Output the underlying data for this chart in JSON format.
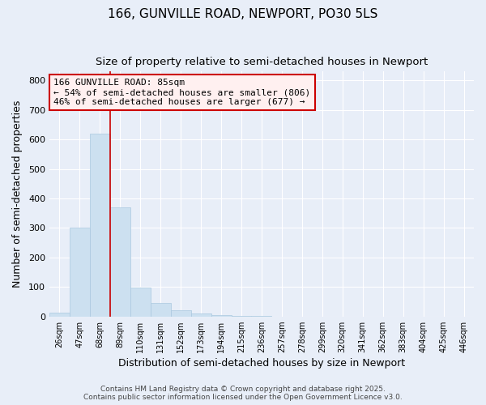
{
  "title1": "166, GUNVILLE ROAD, NEWPORT, PO30 5LS",
  "title2": "Size of property relative to semi-detached houses in Newport",
  "xlabel": "Distribution of semi-detached houses by size in Newport",
  "ylabel": "Number of semi-detached properties",
  "categories": [
    "26sqm",
    "47sqm",
    "68sqm",
    "89sqm",
    "110sqm",
    "131sqm",
    "152sqm",
    "173sqm",
    "194sqm",
    "215sqm",
    "236sqm",
    "257sqm",
    "278sqm",
    "299sqm",
    "320sqm",
    "341sqm",
    "362sqm",
    "383sqm",
    "404sqm",
    "425sqm",
    "446sqm"
  ],
  "values": [
    12,
    302,
    620,
    370,
    97,
    47,
    22,
    10,
    5,
    2,
    1,
    0,
    0,
    0,
    0,
    0,
    0,
    0,
    0,
    0,
    0
  ],
  "bar_color": "#cce0f0",
  "bar_edge_color": "#aac8e0",
  "vline_color": "#cc0000",
  "vline_pos": 2.5,
  "ylim": [
    0,
    830
  ],
  "yticks": [
    0,
    100,
    200,
    300,
    400,
    500,
    600,
    700,
    800
  ],
  "annotation_title": "166 GUNVILLE ROAD: 85sqm",
  "annotation_line1": "← 54% of semi-detached houses are smaller (806)",
  "annotation_line2": "46% of semi-detached houses are larger (677) →",
  "annotation_box_facecolor": "#fff0f0",
  "annotation_border_color": "#cc0000",
  "footer1": "Contains HM Land Registry data © Crown copyright and database right 2025.",
  "footer2": "Contains public sector information licensed under the Open Government Licence v3.0.",
  "bg_color": "#e8eef8",
  "plot_bg_color": "#e8eef8",
  "grid_color": "#ffffff",
  "title_fontsize": 11,
  "subtitle_fontsize": 9.5,
  "tick_fontsize": 7,
  "label_fontsize": 9,
  "footer_fontsize": 6.5,
  "ann_fontsize": 8
}
